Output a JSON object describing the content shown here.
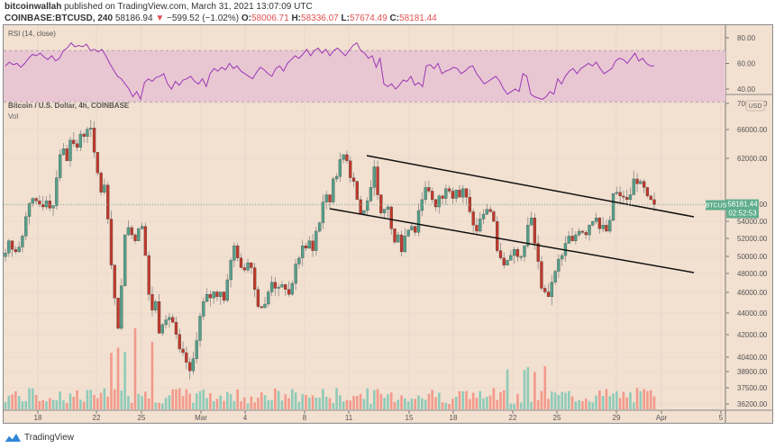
{
  "header": {
    "author": "bitcoinwallah",
    "published_text": "published on TradingView.com, March 31, 2021 13:07:09 UTC",
    "symbol": "COINBASE:BTCUSD, 240",
    "last": "58186.94",
    "change": "−599.52 (−1.02%)",
    "change_arrow": "▼",
    "o_label": "O:",
    "o": "58006.71",
    "h_label": "H:",
    "h": "58336.07",
    "l_label": "L:",
    "l": "57674.49",
    "c_label": "C:",
    "c": "58181.44"
  },
  "rsi_pane": {
    "label": "RSI (14, close)",
    "ticks": [
      "80.00",
      "60.00",
      "40.00"
    ]
  },
  "main_pane": {
    "title": "Bitcoin / U.S. Dollar, 4h, COINBASE",
    "vol_label": "Vol",
    "currency_badge": "USD",
    "price_ticks": [
      "70000.00",
      "66000.00",
      "62000.00",
      "56000.00",
      "54000.00",
      "52000.00",
      "50000.00",
      "48000.00",
      "46000.00",
      "44000.00",
      "42000.00",
      "40400.00",
      "38900.00",
      "37500.00",
      "36200.00"
    ],
    "last_price_badge": {
      "symbol": "BTCUSD",
      "price": "58181.44",
      "countdown": "02:52:53"
    }
  },
  "time_axis": [
    "18",
    "22",
    "25",
    "Mar",
    "4",
    "8",
    "11",
    "15",
    "18",
    "22",
    "25",
    "29",
    "Apr",
    "5"
  ],
  "footer": {
    "brand": "TradingView"
  },
  "colors": {
    "up": "#53a08a",
    "down": "#c0392b",
    "vol_up": "#8fcbb9",
    "vol_down": "#f29a8c",
    "rsi": "#9c36b5",
    "rsi_band": "#e8c7d3",
    "bg": "#f2e0d0"
  },
  "chart_data": {
    "type": "candlestick",
    "title": "Bitcoin / U.S. Dollar, 4h, COINBASE",
    "xlabel": "",
    "ylabel": "USD",
    "ylim": [
      43000,
      70000
    ],
    "x_ticks": [
      "18",
      "22",
      "25",
      "Mar",
      "4",
      "8",
      "11",
      "15",
      "18",
      "22",
      "25",
      "29",
      "Apr",
      "5"
    ],
    "price_path": [
      54200,
      55200,
      54500,
      54300,
      54700,
      55600,
      57200,
      58300,
      58700,
      58500,
      58200,
      58000,
      58500,
      57900,
      58100,
      60400,
      62300,
      62800,
      61800,
      63500,
      63200,
      62900,
      64000,
      63800,
      64400,
      64500,
      62500,
      60800,
      59200,
      59800,
      57000,
      53200,
      50500,
      48000,
      51500,
      55700,
      56300,
      55700,
      55200,
      56200,
      56400,
      54000,
      50800,
      49500,
      50200,
      47600,
      48300,
      48700,
      48900,
      48500,
      47500,
      46300,
      46000,
      45200,
      44500,
      45500,
      47000,
      49000,
      50200,
      50800,
      50500,
      51000,
      50600,
      51000,
      50300,
      52000,
      53600,
      54800,
      53800,
      53000,
      52800,
      53400,
      53000,
      51200,
      49800,
      49700,
      50000,
      51000,
      51800,
      51300,
      51400,
      51600,
      51200,
      50800,
      51700,
      53300,
      53800,
      54800,
      54600,
      55200,
      54400,
      56000,
      56700,
      58400,
      59000,
      58400,
      60300,
      60500,
      61900,
      62300,
      61800,
      60400,
      60100,
      58600,
      57400,
      57700,
      58500,
      59600,
      61300,
      59000,
      57500,
      57800,
      58000,
      56200,
      55100,
      55700,
      54300,
      55600,
      56100,
      56400,
      55900,
      57700,
      58600,
      59600,
      59300,
      58600,
      58000,
      58900,
      58700,
      59500,
      59300,
      58700,
      59400,
      58800,
      59500,
      58800,
      57600,
      56500,
      56000,
      57000,
      57400,
      57800,
      57600,
      56800,
      54400,
      53800,
      53200,
      53600,
      54000,
      54500,
      53900,
      53900,
      54800,
      56500,
      57100,
      55000,
      53500,
      51300,
      51000,
      50600,
      51800,
      52700,
      53700,
      54000,
      55000,
      55600,
      55200,
      55700,
      56000,
      55900,
      55700,
      56500,
      56800,
      57100,
      56200,
      56500,
      56000,
      56900,
      59100,
      59200,
      58900,
      58800,
      58600,
      59000,
      60300,
      59900,
      60100,
      59600,
      58900,
      58600,
      58200
    ]
  }
}
